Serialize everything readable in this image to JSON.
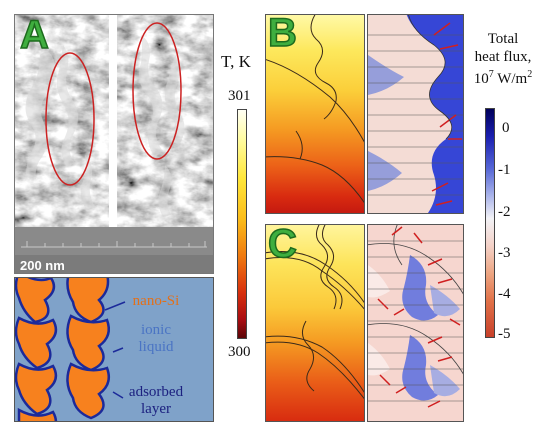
{
  "panel_labels": {
    "a": "A",
    "b": "B",
    "c": "C"
  },
  "sem": {
    "scale_bar": "200 nm"
  },
  "schematic_labels": {
    "nano_si": "nano-Si",
    "ionic_liquid_1": "ionic",
    "ionic_liquid_2": "liquid",
    "adsorbed_1": "adsorbed",
    "adsorbed_2": "layer"
  },
  "temperature_bar": {
    "title": "T, K",
    "max": "301",
    "min": "300"
  },
  "heat_flux_bar": {
    "title_line1": "Total",
    "title_line2": "heat flux,",
    "unit_base": "10",
    "unit_exp": "7",
    "unit_rest": " W/m",
    "unit_exp2": "2",
    "ticks": [
      "0",
      "-1",
      "-2",
      "-3",
      "-4",
      "-5"
    ]
  },
  "colors": {
    "nano_si": "#f7811e",
    "ionic_liquid": "#7fa2c9",
    "adsorbed_layer": "#1c2a9a",
    "label_nano_si": "#e2701a",
    "label_ionic": "#4a74c4",
    "label_adsorbed": "#1c2180",
    "oval": "#cc2222",
    "panel_letter": "#3fae3f"
  }
}
